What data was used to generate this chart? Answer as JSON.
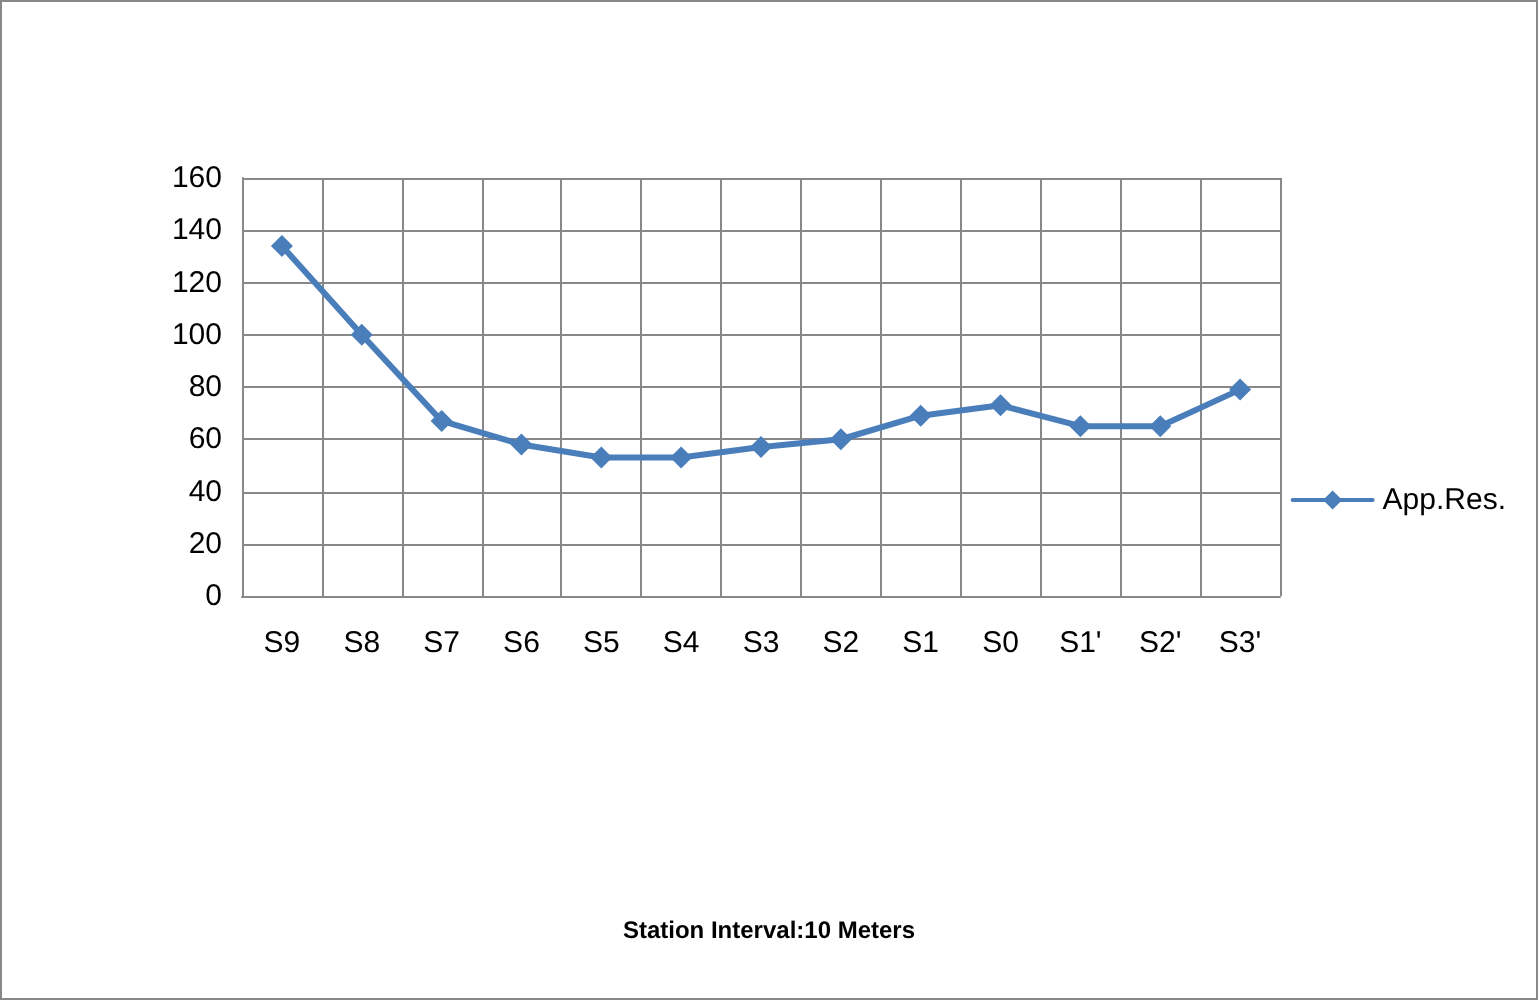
{
  "chart_data": {
    "type": "line",
    "annotations": [
      "Station Interval:10 Meters"
    ],
    "categories": [
      "S9",
      "S8",
      "S7",
      "S6",
      "S5",
      "S4",
      "S3",
      "S2",
      "S1",
      "S0",
      "S1'",
      "S2'",
      "S3'"
    ],
    "series": [
      {
        "name": "App.Res.",
        "color": "#4a7ebb",
        "values": [
          134,
          100,
          67,
          58,
          53,
          53,
          57,
          60,
          69,
          73,
          65,
          65,
          79
        ]
      }
    ],
    "ylim": [
      0,
      160
    ],
    "yticks": [
      0,
      20,
      40,
      60,
      80,
      100,
      120,
      140,
      160
    ],
    "grid": true,
    "legend": "right",
    "marker": "diamond",
    "line_style": "solid"
  }
}
